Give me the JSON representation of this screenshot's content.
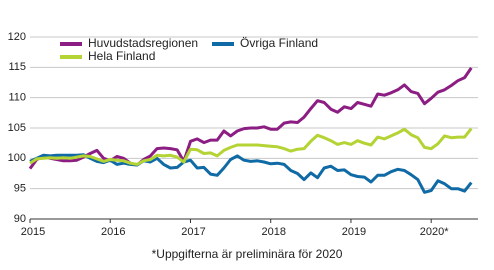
{
  "chart_data": {
    "type": "line",
    "categories": [
      "2015",
      null,
      null,
      null,
      null,
      null,
      null,
      null,
      null,
      null,
      null,
      null,
      "2016",
      null,
      null,
      null,
      null,
      null,
      null,
      null,
      null,
      null,
      null,
      null,
      "2017",
      null,
      null,
      null,
      null,
      null,
      null,
      null,
      null,
      null,
      null,
      null,
      "2018",
      null,
      null,
      null,
      null,
      null,
      null,
      null,
      null,
      null,
      null,
      null,
      "2019",
      null,
      null,
      null,
      null,
      null,
      null,
      null,
      null,
      null,
      null,
      null,
      "2020*",
      null,
      null,
      null,
      null,
      null,
      null
    ],
    "series": [
      {
        "name": "Huvudstadsregionen",
        "color": "#8c1d82",
        "values": [
          98.3,
          99.8,
          100.3,
          100.0,
          99.8,
          99.6,
          99.6,
          99.7,
          100.2,
          100.8,
          101.3,
          100.0,
          99.6,
          100.3,
          100.0,
          99.2,
          98.9,
          99.8,
          100.4,
          101.6,
          101.7,
          101.6,
          101.4,
          99.5,
          102.8,
          103.2,
          102.6,
          103.0,
          103.0,
          104.5,
          103.7,
          104.5,
          104.9,
          105.0,
          105.0,
          105.2,
          104.8,
          104.8,
          105.8,
          106.0,
          105.9,
          106.8,
          108.2,
          109.5,
          109.2,
          108.1,
          107.6,
          108.5,
          108.2,
          109.2,
          108.9,
          108.6,
          110.6,
          110.4,
          110.8,
          111.3,
          112.1,
          111.0,
          110.7,
          109.0,
          109.9,
          110.9,
          111.3,
          112.0,
          112.8,
          113.3,
          114.9
        ]
      },
      {
        "name": "Övriga Finland",
        "color": "#0f6aa5",
        "values": [
          99.5,
          100.0,
          100.5,
          100.4,
          100.5,
          100.5,
          100.5,
          100.5,
          100.6,
          100.0,
          99.5,
          99.3,
          99.7,
          99.0,
          99.2,
          99.0,
          98.9,
          99.6,
          99.4,
          100.0,
          99.0,
          98.4,
          98.5,
          99.4,
          99.7,
          98.4,
          98.5,
          97.4,
          97.2,
          98.4,
          99.8,
          100.4,
          99.7,
          99.5,
          99.6,
          99.4,
          99.1,
          99.2,
          99.0,
          98.0,
          97.5,
          96.5,
          97.6,
          96.8,
          98.4,
          98.7,
          98.0,
          98.1,
          97.3,
          97.0,
          96.9,
          96.1,
          97.2,
          97.2,
          97.8,
          98.2,
          98.0,
          97.3,
          96.5,
          94.4,
          94.7,
          96.3,
          95.8,
          95.0,
          95.0,
          94.6,
          96.0
        ]
      },
      {
        "name": "Hela Finland",
        "color": "#b4d334",
        "values": [
          99.2,
          99.9,
          100.0,
          100.1,
          100.0,
          100.1,
          100.0,
          100.2,
          100.4,
          100.3,
          99.9,
          99.5,
          99.8,
          99.7,
          99.6,
          99.2,
          99.0,
          99.6,
          99.8,
          100.5,
          100.4,
          100.5,
          100.2,
          99.4,
          101.5,
          101.4,
          100.8,
          100.9,
          100.4,
          101.3,
          101.8,
          102.2,
          102.2,
          102.2,
          102.2,
          102.1,
          102.0,
          101.9,
          101.6,
          101.2,
          101.5,
          101.6,
          102.8,
          103.8,
          103.4,
          102.9,
          102.3,
          102.6,
          102.3,
          102.9,
          102.5,
          102.2,
          103.5,
          103.2,
          103.7,
          104.2,
          104.8,
          103.9,
          103.4,
          101.8,
          101.6,
          102.4,
          103.7,
          103.4,
          103.5,
          103.5,
          104.9
        ]
      }
    ],
    "ylim": [
      90,
      120
    ],
    "yticks": [
      90,
      95,
      100,
      105,
      110,
      115,
      120
    ],
    "grid": true,
    "footnote": "*Uppgifterna är preliminära för 2020"
  }
}
